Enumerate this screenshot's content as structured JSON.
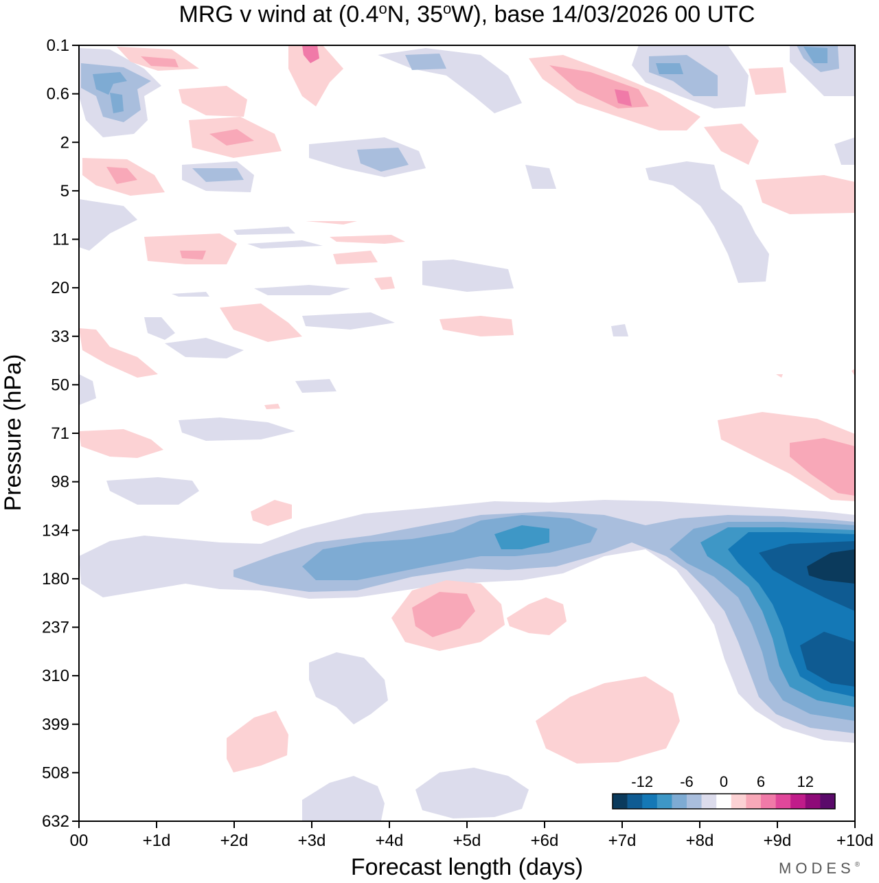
{
  "chart_data": {
    "type": "contour",
    "title_parts": [
      "MRG v wind at (0.4",
      "o",
      "N, 35",
      "o",
      "W),  base 14/03/2026  00 UTC"
    ],
    "xlabel": "Forecast length (days)",
    "ylabel": "Pressure (hPa)",
    "x_ticks": [
      "00",
      "+1d",
      "+2d",
      "+3d",
      "+4d",
      "+5d",
      "+6d",
      "+7d",
      "+8d",
      "+9d",
      "+10d"
    ],
    "y_ticks": [
      "0.1",
      "0.6",
      "2",
      "5",
      "11",
      "20",
      "33",
      "50",
      "71",
      "98",
      "134",
      "180",
      "237",
      "310",
      "399",
      "508",
      "632"
    ],
    "xlim": [
      0,
      10
    ],
    "colorbar": {
      "labels": [
        "-12",
        "-6",
        "0",
        "6",
        "12"
      ],
      "levels": [
        -16,
        -14,
        -12,
        -10,
        -8,
        -6,
        -4,
        -2,
        2,
        4,
        6,
        8,
        10,
        12,
        14,
        16
      ],
      "colors": [
        "#0b3a5c",
        "#0f5b92",
        "#1478b6",
        "#3e97c6",
        "#7eabd3",
        "#a9bedd",
        "#dcdcec",
        "#ffffff",
        "#fcd2d4",
        "#f8a8b8",
        "#f07aa8",
        "#e0479a",
        "#c01c8a",
        "#8e0a78",
        "#5a0a6a"
      ]
    },
    "features": [
      {
        "name": "jet-core-negative",
        "day": 9.6,
        "pressure": 180,
        "min_value": -16
      },
      {
        "name": "upper-trop-negative-band",
        "day_range": [
          2,
          10
        ],
        "pressure": 150,
        "value": -8
      },
      {
        "name": "positive-blob-230hPa",
        "day": 4.7,
        "pressure": 230,
        "value": 5
      },
      {
        "name": "positive-blob-85hPa",
        "day": 9.7,
        "pressure": 85,
        "value": 5
      }
    ],
    "brand": "MODES",
    "brand_mark": "®"
  }
}
